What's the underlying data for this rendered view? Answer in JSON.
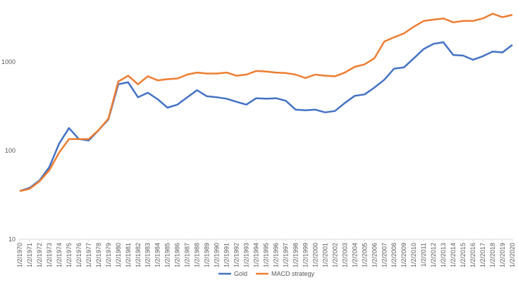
{
  "chart_data": {
    "type": "line",
    "x": [
      "1/2/1970",
      "1/2/1971",
      "1/2/1972",
      "1/2/1973",
      "1/2/1974",
      "1/2/1975",
      "1/2/1976",
      "1/2/1977",
      "1/2/1978",
      "1/2/1979",
      "1/2/1980",
      "1/2/1981",
      "1/2/1982",
      "1/2/1983",
      "1/2/1984",
      "1/2/1985",
      "1/2/1986",
      "1/2/1987",
      "1/2/1988",
      "1/2/1989",
      "1/2/1990",
      "1/2/1991",
      "1/2/1992",
      "1/2/1993",
      "1/2/1994",
      "1/2/1995",
      "1/2/1996",
      "1/2/1997",
      "1/2/1998",
      "1/2/1999",
      "1/2/2000",
      "1/2/2001",
      "1/2/2002",
      "1/2/2003",
      "1/2/2004",
      "1/2/2005",
      "1/2/2006",
      "1/2/2007",
      "1/2/2008",
      "1/2/2009",
      "1/2/2010",
      "1/2/2011",
      "1/2/2012",
      "1/2/2013",
      "1/2/2014",
      "1/2/2015",
      "1/2/2016",
      "1/2/2017",
      "1/2/2018",
      "1/2/2019",
      "1/2/2020"
    ],
    "series": [
      {
        "name": "Gold",
        "color": "#4472c4",
        "values": [
          35,
          38,
          46,
          65,
          120,
          180,
          135,
          130,
          170,
          225,
          560,
          590,
          400,
          450,
          380,
          305,
          330,
          400,
          480,
          410,
          400,
          385,
          355,
          330,
          390,
          385,
          390,
          365,
          290,
          285,
          290,
          270,
          280,
          345,
          415,
          430,
          515,
          630,
          840,
          870,
          1100,
          1400,
          1600,
          1670,
          1200,
          1180,
          1060,
          1160,
          1310,
          1280,
          1560
        ]
      },
      {
        "name": "MACD strategy",
        "color": "#ed7d31",
        "values": [
          35,
          37,
          45,
          60,
          95,
          135,
          135,
          135,
          170,
          230,
          600,
          700,
          560,
          690,
          620,
          640,
          650,
          720,
          760,
          740,
          740,
          760,
          700,
          720,
          790,
          780,
          760,
          750,
          720,
          660,
          720,
          700,
          690,
          760,
          880,
          940,
          1100,
          1700,
          1900,
          2100,
          2500,
          2900,
          3000,
          3100,
          2800,
          2900,
          2900,
          3100,
          3500,
          3200,
          3400
        ]
      }
    ],
    "ylim": [
      10,
      5000
    ],
    "yticks": [
      10,
      100,
      1000
    ],
    "log_scale": true,
    "grid": false,
    "legend": "bottom"
  }
}
